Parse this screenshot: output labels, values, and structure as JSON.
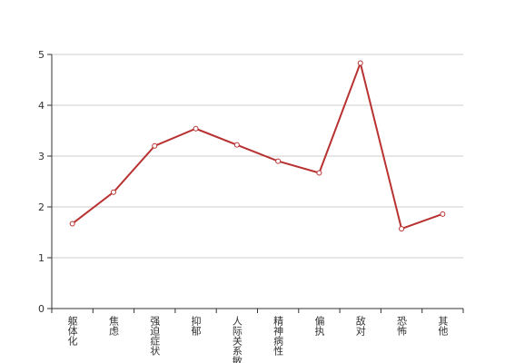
{
  "chart_data": {
    "type": "line",
    "categories": [
      "躯体化",
      "焦虑",
      "强迫症状",
      "抑郁",
      "人际关系敏感",
      "精神病性",
      "偏执",
      "敌对",
      "恐怖",
      "其他"
    ],
    "values": [
      1.67,
      2.29,
      3.2,
      3.54,
      3.22,
      2.9,
      2.67,
      4.83,
      1.57,
      1.86
    ],
    "color": "#b83232",
    "ylim": [
      0,
      5
    ],
    "yticks": [
      0,
      1,
      2,
      3,
      4,
      5
    ],
    "grid": true
  }
}
